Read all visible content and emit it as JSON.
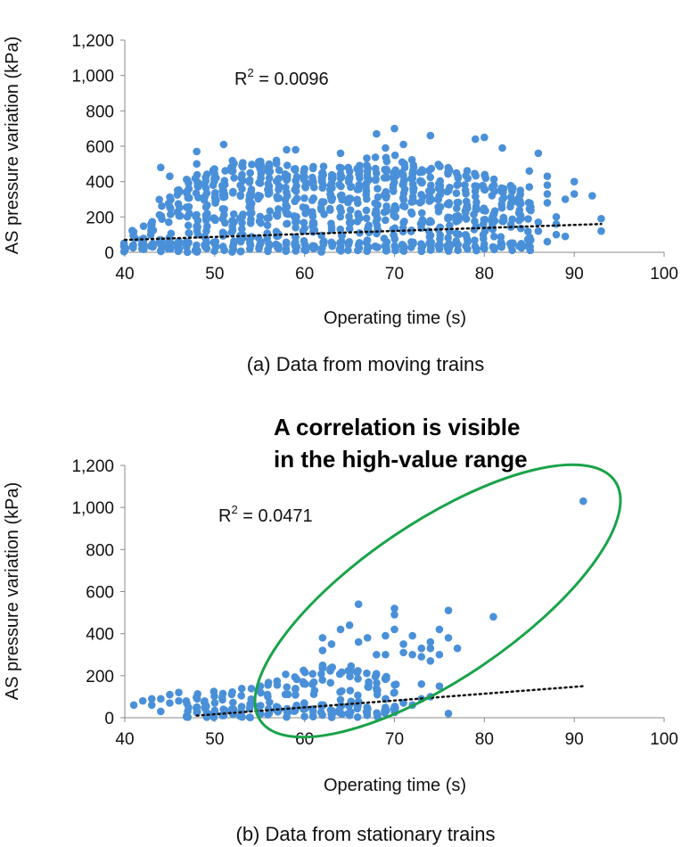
{
  "colors": {
    "point": "#4a90d9",
    "trend": "#111111",
    "ellipse": "#1aa34a",
    "axis": "#888888"
  },
  "chart_data": [
    {
      "type": "scatter",
      "caption": "(a) Data from moving trains",
      "xlabel": "Operating time (s)",
      "ylabel": "AS pressure variation (kPa)",
      "xlim": [
        40,
        100
      ],
      "ylim": [
        0,
        1200
      ],
      "xticks": [
        "40",
        "50",
        "60",
        "70",
        "80",
        "90",
        "100"
      ],
      "yticks": [
        "0",
        "200",
        "400",
        "600",
        "800",
        "1,000",
        "1,200"
      ],
      "r2_label": "R",
      "r2_sup": "2",
      "r2_value": " = 0.0096",
      "trendline": {
        "style": "dotted",
        "x": [
          40,
          93
        ],
        "y": [
          70,
          160
        ]
      },
      "density_profile": [
        [
          40,
          60
        ],
        [
          41,
          150
        ],
        [
          42,
          200
        ],
        [
          43,
          230
        ],
        [
          44,
          300
        ],
        [
          45,
          320
        ],
        [
          46,
          370
        ],
        [
          47,
          420
        ],
        [
          48,
          450
        ],
        [
          49,
          470
        ],
        [
          50,
          490
        ],
        [
          51,
          500
        ],
        [
          52,
          520
        ],
        [
          53,
          520
        ],
        [
          54,
          530
        ],
        [
          55,
          520
        ],
        [
          56,
          520
        ],
        [
          57,
          530
        ],
        [
          58,
          510
        ],
        [
          59,
          500
        ],
        [
          60,
          500
        ],
        [
          61,
          500
        ],
        [
          62,
          500
        ],
        [
          63,
          500
        ],
        [
          64,
          500
        ],
        [
          65,
          510
        ],
        [
          66,
          520
        ],
        [
          67,
          540
        ],
        [
          68,
          560
        ],
        [
          69,
          550
        ],
        [
          70,
          560
        ],
        [
          71,
          540
        ],
        [
          72,
          530
        ],
        [
          73,
          520
        ],
        [
          74,
          500
        ],
        [
          75,
          500
        ],
        [
          76,
          490
        ],
        [
          77,
          480
        ],
        [
          78,
          470
        ],
        [
          79,
          460
        ],
        [
          80,
          440
        ],
        [
          81,
          420
        ],
        [
          82,
          400
        ],
        [
          83,
          380
        ],
        [
          84,
          340
        ],
        [
          85,
          300
        ]
      ],
      "outliers": [
        [
          44,
          480
        ],
        [
          45,
          430
        ],
        [
          48,
          570
        ],
        [
          48,
          500
        ],
        [
          51,
          610
        ],
        [
          58,
          580
        ],
        [
          59,
          580
        ],
        [
          64,
          560
        ],
        [
          68,
          670
        ],
        [
          69,
          590
        ],
        [
          70,
          700
        ],
        [
          71,
          610
        ],
        [
          74,
          660
        ],
        [
          79,
          640
        ],
        [
          80,
          650
        ],
        [
          82,
          590
        ],
        [
          86,
          560
        ],
        [
          87,
          430
        ],
        [
          87,
          380
        ],
        [
          87,
          330
        ],
        [
          87,
          280
        ],
        [
          88,
          200
        ],
        [
          88,
          160
        ],
        [
          88,
          100
        ],
        [
          89,
          90
        ],
        [
          89,
          300
        ],
        [
          90,
          400
        ],
        [
          90,
          330
        ],
        [
          92,
          320
        ],
        [
          93,
          190
        ],
        [
          93,
          120
        ],
        [
          86,
          170
        ],
        [
          86,
          120
        ],
        [
          87,
          60
        ],
        [
          84,
          350
        ],
        [
          85,
          460
        ],
        [
          85,
          370
        ]
      ]
    },
    {
      "type": "scatter",
      "caption": "(b) Data from stationary trains",
      "xlabel": "Operating time (s)",
      "ylabel": "AS pressure variation (kPa)",
      "xlim": [
        40,
        100
      ],
      "ylim": [
        0,
        1200
      ],
      "xticks": [
        "40",
        "50",
        "60",
        "70",
        "80",
        "90",
        "100"
      ],
      "yticks": [
        "0",
        "200",
        "400",
        "600",
        "800",
        "1,000",
        "1,200"
      ],
      "r2_label": "R",
      "r2_sup": "2",
      "r2_value": " = 0.0471",
      "annotation": [
        "A correlation is visible",
        "in the high-value range"
      ],
      "trendline": {
        "style": "dotted",
        "x": [
          48,
          91
        ],
        "y": [
          10,
          150
        ]
      },
      "density_profile": [
        [
          47,
          110
        ],
        [
          48,
          120
        ],
        [
          49,
          120
        ],
        [
          50,
          130
        ],
        [
          51,
          130
        ],
        [
          52,
          140
        ],
        [
          53,
          150
        ],
        [
          54,
          160
        ],
        [
          55,
          170
        ],
        [
          56,
          180
        ],
        [
          57,
          200
        ],
        [
          58,
          210
        ],
        [
          59,
          220
        ],
        [
          60,
          230
        ],
        [
          61,
          240
        ],
        [
          62,
          250
        ],
        [
          63,
          260
        ],
        [
          64,
          260
        ],
        [
          65,
          250
        ],
        [
          66,
          240
        ],
        [
          67,
          230
        ],
        [
          68,
          220
        ],
        [
          69,
          200
        ],
        [
          70,
          180
        ]
      ],
      "outliers": [
        [
          41,
          60
        ],
        [
          42,
          80
        ],
        [
          43,
          90
        ],
        [
          43,
          60
        ],
        [
          44,
          90
        ],
        [
          44,
          30
        ],
        [
          45,
          110
        ],
        [
          45,
          70
        ],
        [
          46,
          120
        ],
        [
          46,
          80
        ],
        [
          62,
          320
        ],
        [
          62,
          380
        ],
        [
          63,
          350
        ],
        [
          64,
          420
        ],
        [
          65,
          440
        ],
        [
          66,
          540
        ],
        [
          66,
          360
        ],
        [
          67,
          380
        ],
        [
          68,
          300
        ],
        [
          69,
          390
        ],
        [
          69,
          300
        ],
        [
          70,
          520
        ],
        [
          70,
          490
        ],
        [
          70,
          420
        ],
        [
          71,
          350
        ],
        [
          71,
          310
        ],
        [
          72,
          390
        ],
        [
          72,
          300
        ],
        [
          73,
          330
        ],
        [
          73,
          290
        ],
        [
          74,
          360
        ],
        [
          74,
          330
        ],
        [
          74,
          270
        ],
        [
          75,
          300
        ],
        [
          75,
          420
        ],
        [
          76,
          510
        ],
        [
          76,
          380
        ],
        [
          77,
          330
        ],
        [
          81,
          480
        ],
        [
          91,
          1030
        ],
        [
          76,
          20
        ],
        [
          74,
          100
        ],
        [
          72,
          60
        ],
        [
          71,
          70
        ],
        [
          70,
          120
        ],
        [
          68,
          140
        ],
        [
          69,
          90
        ],
        [
          73,
          90
        ],
        [
          75,
          150
        ],
        [
          73,
          160
        ]
      ]
    }
  ]
}
